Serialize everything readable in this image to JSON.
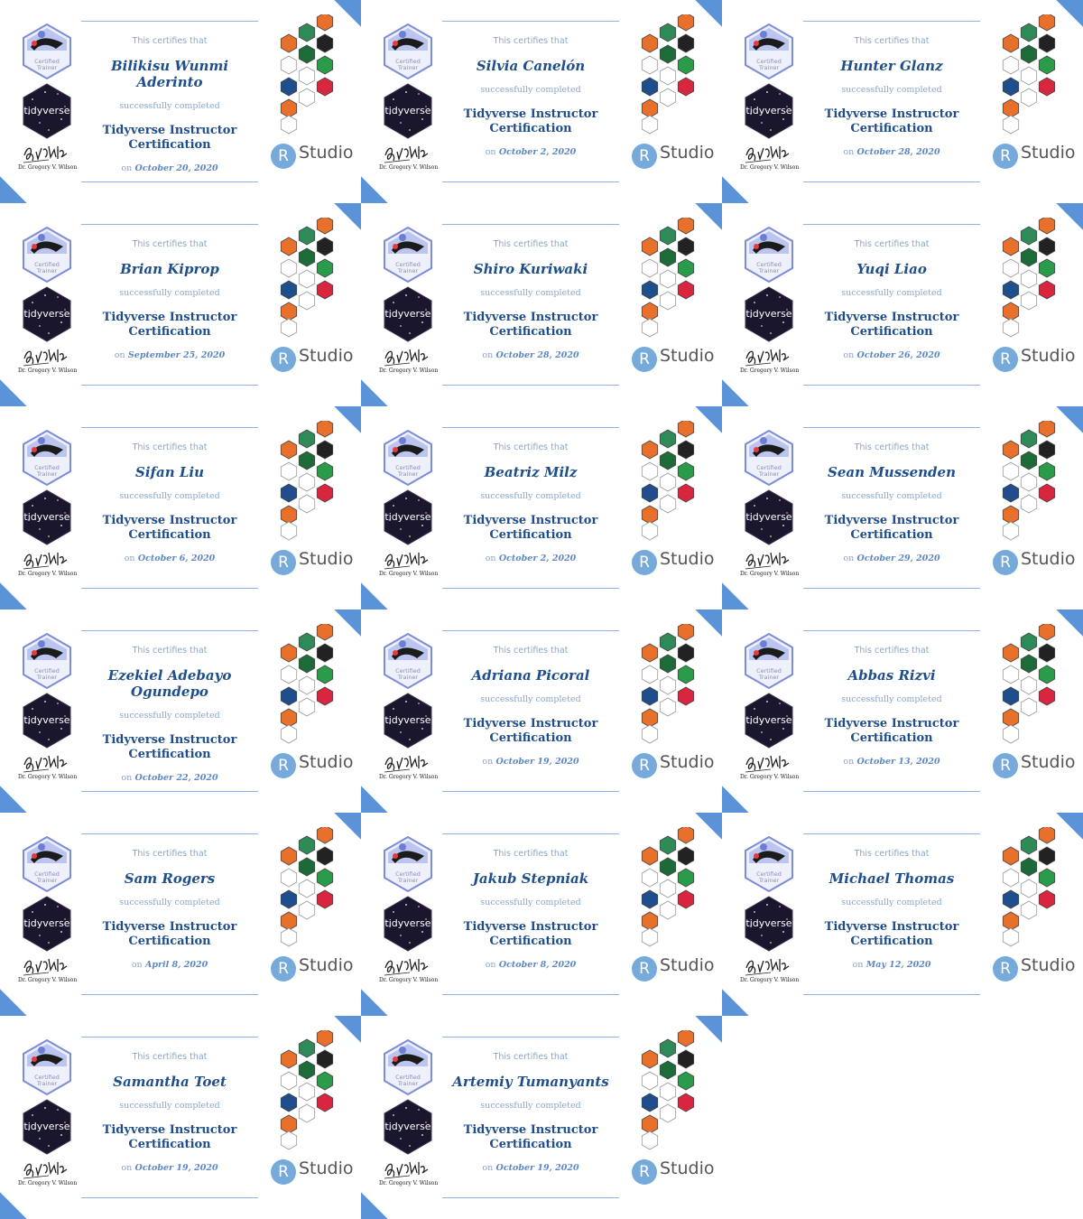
{
  "certificate": {
    "certifies": "This certifies that",
    "completed": "successfully completed",
    "course_line1": "Tidyverse Instructor",
    "course_line2": "Certification",
    "on": "on",
    "badge_label_1": "Certified",
    "badge_label_2": "Trainer",
    "tidyverse_label": "tidyverse",
    "signatory": "Dr. Gregory V. Wilson",
    "rstudio_r": "R",
    "rstudio_text": "Studio",
    "accent_color": "#5b93d9",
    "title_color": "#1f4e8c"
  },
  "recipients": [
    {
      "name": "Bilikisu Wunmi Aderinto",
      "date": "October 20, 2020"
    },
    {
      "name": "Silvia Canelón",
      "date": "October 2, 2020"
    },
    {
      "name": "Hunter Glanz",
      "date": "October 28, 2020"
    },
    {
      "name": "Brian Kiprop",
      "date": "September 25, 2020"
    },
    {
      "name": "Shiro Kuriwaki",
      "date": "October 28, 2020"
    },
    {
      "name": "Yuqi Liao",
      "date": "October 26, 2020"
    },
    {
      "name": "Sifan Liu",
      "date": "October 6, 2020"
    },
    {
      "name": "Beatriz Milz",
      "date": "October 2, 2020"
    },
    {
      "name": "Sean Mussenden",
      "date": "October 29, 2020"
    },
    {
      "name": "Ezekiel Adebayo Ogundepo",
      "date": "October 22, 2020"
    },
    {
      "name": "Adriana Picoral",
      "date": "October 19, 2020"
    },
    {
      "name": "Abbas Rizvi",
      "date": "October 13, 2020"
    },
    {
      "name": "Sam Rogers",
      "date": "April 8, 2020"
    },
    {
      "name": "Jakub Stepniak",
      "date": "October 8, 2020"
    },
    {
      "name": "Michael Thomas",
      "date": "May 12, 2020"
    },
    {
      "name": "Samantha Toet",
      "date": "October 19, 2020"
    },
    {
      "name": "Artemiy Tumanyants",
      "date": "October 19, 2020"
    }
  ]
}
